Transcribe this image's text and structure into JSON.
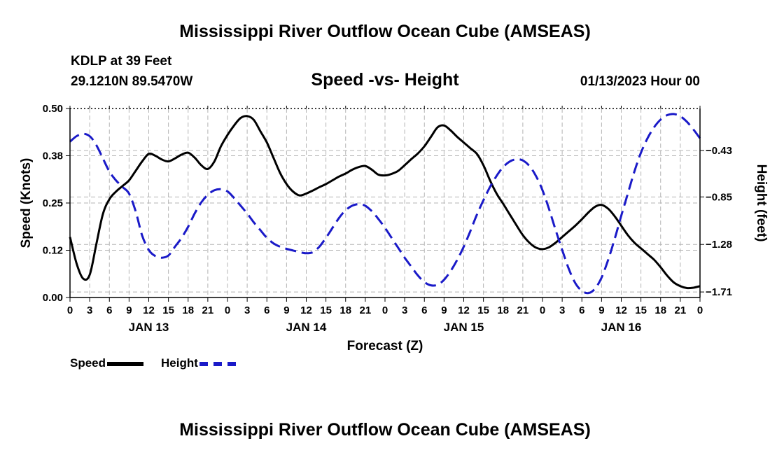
{
  "titles": {
    "main": "Mississippi River Outflow Ocean Cube (AMSEAS)",
    "bottom": "Mississippi River Outflow Ocean Cube (AMSEAS)"
  },
  "header": {
    "station": "KDLP at 39 Feet",
    "coords": "29.1210N  89.5470W",
    "datetime": "01/13/2023 Hour 00"
  },
  "legend": {
    "speed_label": "Speed",
    "height_label": "Height"
  },
  "colors": {
    "speed": "#000000",
    "height": "#1a1ac8",
    "grid": "#b4b4b4"
  },
  "chart_data": {
    "type": "line",
    "title": "Speed -vs- Height",
    "xlabel": "Forecast (Z)",
    "ylabel": "Speed (Knots)",
    "y2label": "Height (feet)",
    "x_range": [
      0,
      96
    ],
    "x_tick_step": 3,
    "x_tick_labels": [
      "0",
      "3",
      "6",
      "9",
      "12",
      "15",
      "18",
      "21",
      "0",
      "3",
      "6",
      "9",
      "12",
      "15",
      "18",
      "21",
      "0",
      "3",
      "6",
      "9",
      "12",
      "15",
      "18",
      "21",
      "0",
      "3",
      "6",
      "9",
      "12",
      "15",
      "18",
      "21",
      "0"
    ],
    "day_labels": [
      {
        "x": 12,
        "label": "JAN 13"
      },
      {
        "x": 36,
        "label": "JAN 14"
      },
      {
        "x": 60,
        "label": "JAN 15"
      },
      {
        "x": 84,
        "label": "JAN 16"
      }
    ],
    "ylim": [
      0,
      0.5
    ],
    "y_ticks": [
      0,
      0.125,
      0.25,
      0.375,
      0.5
    ],
    "y_tick_labels": [
      "0.00",
      "0.12",
      "0.25",
      "0.38",
      "0.50"
    ],
    "y2lim": [
      -1.76,
      -0.05
    ],
    "y2_ticks": [
      -1.71,
      -1.28,
      -0.85,
      -0.43
    ],
    "y2_tick_labels": [
      "-1.71",
      "-1.28",
      "-0.85",
      "-0.43"
    ],
    "series": [
      {
        "name": "Speed",
        "axis": "left",
        "style": "solid",
        "points": [
          [
            0,
            0.16
          ],
          [
            1,
            0.09
          ],
          [
            2,
            0.05
          ],
          [
            3,
            0.06
          ],
          [
            4,
            0.14
          ],
          [
            5,
            0.22
          ],
          [
            6,
            0.26
          ],
          [
            7,
            0.28
          ],
          [
            8,
            0.295
          ],
          [
            9,
            0.31
          ],
          [
            10,
            0.335
          ],
          [
            11,
            0.36
          ],
          [
            12,
            0.38
          ],
          [
            13,
            0.375
          ],
          [
            14,
            0.365
          ],
          [
            15,
            0.36
          ],
          [
            16,
            0.368
          ],
          [
            17,
            0.378
          ],
          [
            18,
            0.383
          ],
          [
            19,
            0.37
          ],
          [
            20,
            0.35
          ],
          [
            21,
            0.34
          ],
          [
            22,
            0.36
          ],
          [
            23,
            0.4
          ],
          [
            24,
            0.43
          ],
          [
            25,
            0.455
          ],
          [
            26,
            0.475
          ],
          [
            27,
            0.48
          ],
          [
            28,
            0.47
          ],
          [
            29,
            0.44
          ],
          [
            30,
            0.41
          ],
          [
            31,
            0.37
          ],
          [
            32,
            0.33
          ],
          [
            33,
            0.3
          ],
          [
            34,
            0.28
          ],
          [
            35,
            0.27
          ],
          [
            36,
            0.275
          ],
          [
            37,
            0.283
          ],
          [
            38,
            0.292
          ],
          [
            39,
            0.3
          ],
          [
            40,
            0.31
          ],
          [
            41,
            0.32
          ],
          [
            42,
            0.328
          ],
          [
            43,
            0.338
          ],
          [
            44,
            0.345
          ],
          [
            45,
            0.348
          ],
          [
            46,
            0.338
          ],
          [
            47,
            0.325
          ],
          [
            48,
            0.323
          ],
          [
            49,
            0.327
          ],
          [
            50,
            0.335
          ],
          [
            51,
            0.35
          ],
          [
            52,
            0.366
          ],
          [
            53,
            0.381
          ],
          [
            54,
            0.4
          ],
          [
            55,
            0.425
          ],
          [
            56,
            0.45
          ],
          [
            57,
            0.455
          ],
          [
            58,
            0.442
          ],
          [
            59,
            0.425
          ],
          [
            60,
            0.41
          ],
          [
            61,
            0.395
          ],
          [
            62,
            0.38
          ],
          [
            63,
            0.35
          ],
          [
            64,
            0.31
          ],
          [
            65,
            0.275
          ],
          [
            66,
            0.248
          ],
          [
            67,
            0.22
          ],
          [
            68,
            0.192
          ],
          [
            69,
            0.165
          ],
          [
            70,
            0.145
          ],
          [
            71,
            0.132
          ],
          [
            72,
            0.128
          ],
          [
            73,
            0.133
          ],
          [
            74,
            0.145
          ],
          [
            75,
            0.16
          ],
          [
            76,
            0.175
          ],
          [
            77,
            0.19
          ],
          [
            78,
            0.207
          ],
          [
            79,
            0.225
          ],
          [
            80,
            0.24
          ],
          [
            81,
            0.245
          ],
          [
            82,
            0.235
          ],
          [
            83,
            0.215
          ],
          [
            84,
            0.19
          ],
          [
            85,
            0.165
          ],
          [
            86,
            0.145
          ],
          [
            87,
            0.13
          ],
          [
            88,
            0.115
          ],
          [
            89,
            0.1
          ],
          [
            90,
            0.08
          ],
          [
            91,
            0.058
          ],
          [
            92,
            0.04
          ],
          [
            93,
            0.03
          ],
          [
            94,
            0.025
          ],
          [
            95,
            0.026
          ],
          [
            96,
            0.03
          ]
        ]
      },
      {
        "name": "Height",
        "axis": "right",
        "style": "dashed",
        "points": [
          [
            0,
            -0.35
          ],
          [
            1,
            -0.3
          ],
          [
            2,
            -0.28
          ],
          [
            3,
            -0.3
          ],
          [
            4,
            -0.38
          ],
          [
            5,
            -0.5
          ],
          [
            6,
            -0.62
          ],
          [
            7,
            -0.7
          ],
          [
            8,
            -0.76
          ],
          [
            9,
            -0.82
          ],
          [
            10,
            -0.98
          ],
          [
            11,
            -1.2
          ],
          [
            12,
            -1.33
          ],
          [
            13,
            -1.385
          ],
          [
            14,
            -1.4
          ],
          [
            15,
            -1.38
          ],
          [
            16,
            -1.3
          ],
          [
            17,
            -1.22
          ],
          [
            18,
            -1.12
          ],
          [
            19,
            -1.0
          ],
          [
            20,
            -0.9
          ],
          [
            21,
            -0.83
          ],
          [
            22,
            -0.79
          ],
          [
            23,
            -0.78
          ],
          [
            24,
            -0.8
          ],
          [
            25,
            -0.86
          ],
          [
            26,
            -0.93
          ],
          [
            27,
            -1.0
          ],
          [
            28,
            -1.08
          ],
          [
            29,
            -1.15
          ],
          [
            30,
            -1.22
          ],
          [
            31,
            -1.27
          ],
          [
            32,
            -1.3
          ],
          [
            33,
            -1.32
          ],
          [
            34,
            -1.335
          ],
          [
            35,
            -1.35
          ],
          [
            36,
            -1.36
          ],
          [
            37,
            -1.35
          ],
          [
            38,
            -1.3
          ],
          [
            39,
            -1.22
          ],
          [
            40,
            -1.13
          ],
          [
            41,
            -1.04
          ],
          [
            42,
            -0.97
          ],
          [
            43,
            -0.93
          ],
          [
            44,
            -0.915
          ],
          [
            45,
            -0.93
          ],
          [
            46,
            -0.98
          ],
          [
            47,
            -1.05
          ],
          [
            48,
            -1.13
          ],
          [
            49,
            -1.22
          ],
          [
            50,
            -1.31
          ],
          [
            51,
            -1.4
          ],
          [
            52,
            -1.48
          ],
          [
            53,
            -1.56
          ],
          [
            54,
            -1.62
          ],
          [
            55,
            -1.65
          ],
          [
            56,
            -1.645
          ],
          [
            57,
            -1.6
          ],
          [
            58,
            -1.52
          ],
          [
            59,
            -1.42
          ],
          [
            60,
            -1.3
          ],
          [
            61,
            -1.16
          ],
          [
            62,
            -1.01
          ],
          [
            63,
            -0.88
          ],
          [
            64,
            -0.76
          ],
          [
            65,
            -0.66
          ],
          [
            66,
            -0.58
          ],
          [
            67,
            -0.53
          ],
          [
            68,
            -0.51
          ],
          [
            69,
            -0.52
          ],
          [
            70,
            -0.57
          ],
          [
            71,
            -0.66
          ],
          [
            72,
            -0.79
          ],
          [
            73,
            -0.96
          ],
          [
            74,
            -1.15
          ],
          [
            75,
            -1.33
          ],
          [
            76,
            -1.5
          ],
          [
            77,
            -1.63
          ],
          [
            78,
            -1.7
          ],
          [
            79,
            -1.72
          ],
          [
            80,
            -1.68
          ],
          [
            81,
            -1.58
          ],
          [
            82,
            -1.42
          ],
          [
            83,
            -1.23
          ],
          [
            84,
            -1.02
          ],
          [
            85,
            -0.82
          ],
          [
            86,
            -0.62
          ],
          [
            87,
            -0.45
          ],
          [
            88,
            -0.32
          ],
          [
            89,
            -0.22
          ],
          [
            90,
            -0.15
          ],
          [
            91,
            -0.11
          ],
          [
            92,
            -0.1
          ],
          [
            93,
            -0.12
          ],
          [
            94,
            -0.17
          ],
          [
            95,
            -0.24
          ],
          [
            96,
            -0.32
          ]
        ]
      }
    ]
  }
}
